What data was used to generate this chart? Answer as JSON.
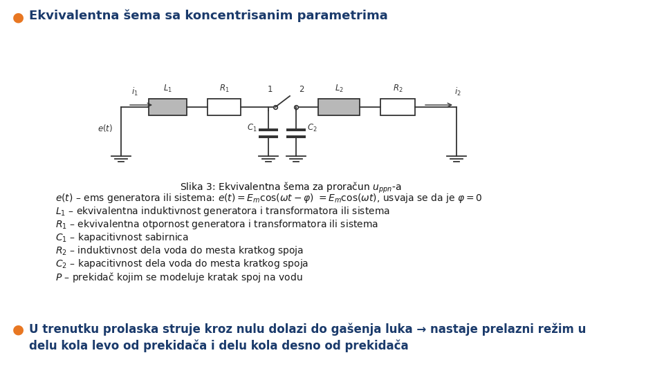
{
  "bg_color": "#ffffff",
  "title_bullet_color": "#e87722",
  "title_text": "Ekvivalentna šema sa koncentrisanim parametrima",
  "title_fontsize": 13,
  "title_color": "#1a3a6b",
  "circuit_caption": "Slika 3: Ekvivalentna šema za proračun $u_{ppn}$-a",
  "circuit_caption_fontsize": 10,
  "bullet2_color": "#e87722",
  "bullet2_text_line1": "U trenutku prolaska struje kroz nulu dolazi do gašenja luka → nastaje prelazni režim u",
  "bullet2_text_line2": "delu kola levo od prekidača i delu kola desno od prekidača",
  "bullet2_fontsize": 12,
  "bullet2_color_text": "#1a3a6b",
  "body_lines": [
    "$e(t)$ – ems generatora ili sistema: $e(t)=E_m\\cos(\\omega t-\\varphi)$ $=E_m\\cos(\\omega t)$, usvaja se da je $\\varphi=0$",
    "$L_1$ – ekvivalentna induktivnost generatora i transformatora ili sistema",
    "$R_1$ – ekvivalentna otpornost generatora i transformatora ili sistema",
    "$C_1$ – kapacitivnost sabirnica",
    "$R_2$ – induktivnost dela voda do mesta kratkog spoja",
    "$C_2$ – kapacitivnost dela voda do mesta kratkog spoja",
    "$P$ – prekidač kojim se modeluje kratak spoj na vodu"
  ],
  "body_fontsize": 10,
  "body_color": "#1a1a1a",
  "circuit_line_color": "#333333"
}
